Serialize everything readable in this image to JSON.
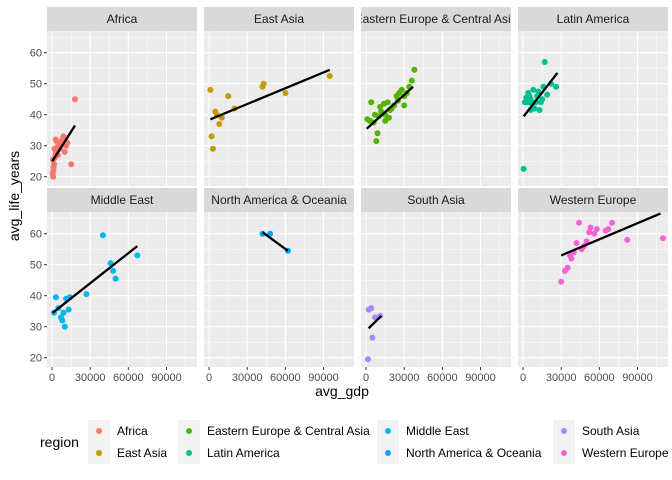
{
  "chart_data": {
    "type": "scatter",
    "facet_by": "region",
    "xlabel": "avg_gdp",
    "ylabel": "avg_life_years",
    "xlim": [
      -4000,
      114000
    ],
    "ylim": [
      17,
      67
    ],
    "xticks": [
      0,
      30000,
      60000,
      90000
    ],
    "xtick_labels": [
      "0",
      "30000",
      "60000",
      "90000"
    ],
    "yticks": [
      20,
      30,
      40,
      50,
      60
    ],
    "ytick_labels": [
      "20",
      "30",
      "40",
      "50",
      "60"
    ],
    "grid": true,
    "trend_lines": "linear fit per panel (black)",
    "legend": {
      "title": "region",
      "position": "bottom"
    },
    "series": [
      {
        "name": "Africa",
        "color": "#F8766D",
        "trend": [
          [
            200,
            25
          ],
          [
            18000,
            36.5
          ]
        ],
        "points": [
          [
            500,
            21
          ],
          [
            800,
            20
          ],
          [
            1000,
            22
          ],
          [
            1200,
            23
          ],
          [
            1500,
            24
          ],
          [
            700,
            25.5
          ],
          [
            2000,
            26
          ],
          [
            2500,
            27
          ],
          [
            3000,
            28
          ],
          [
            1800,
            29
          ],
          [
            4000,
            29.5
          ],
          [
            5000,
            30
          ],
          [
            6000,
            31
          ],
          [
            3500,
            31.5
          ],
          [
            8000,
            32
          ],
          [
            2800,
            32
          ],
          [
            9000,
            33
          ],
          [
            10000,
            28
          ],
          [
            4500,
            27
          ],
          [
            11000,
            30
          ],
          [
            15000,
            24
          ],
          [
            18000,
            45
          ],
          [
            12000,
            31
          ],
          [
            6500,
            29
          ]
        ]
      },
      {
        "name": "East Asia",
        "color": "#C49A00",
        "trend": [
          [
            1000,
            38.5
          ],
          [
            95000,
            54.5
          ]
        ],
        "points": [
          [
            1000,
            48
          ],
          [
            2000,
            33
          ],
          [
            3000,
            29
          ],
          [
            5000,
            41
          ],
          [
            6000,
            40
          ],
          [
            8000,
            37
          ],
          [
            10000,
            39
          ],
          [
            15000,
            46
          ],
          [
            20000,
            42
          ],
          [
            42000,
            49
          ],
          [
            43000,
            50
          ],
          [
            60000,
            47
          ],
          [
            95000,
            52.5
          ]
        ]
      },
      {
        "name": "Eastern Europe & Central Asia",
        "color": "#53B400",
        "trend": [
          [
            500,
            35.5
          ],
          [
            37000,
            49
          ]
        ],
        "points": [
          [
            1000,
            38.5
          ],
          [
            3000,
            38
          ],
          [
            4000,
            44
          ],
          [
            6000,
            37.5
          ],
          [
            7000,
            40
          ],
          [
            8000,
            31.5
          ],
          [
            9000,
            34
          ],
          [
            10000,
            39.5
          ],
          [
            11000,
            42.5
          ],
          [
            12000,
            41
          ],
          [
            14000,
            43.5
          ],
          [
            15000,
            40
          ],
          [
            17000,
            44
          ],
          [
            18000,
            39
          ],
          [
            19000,
            41.5
          ],
          [
            20000,
            42
          ],
          [
            22000,
            43
          ],
          [
            24000,
            46
          ],
          [
            25000,
            44.5
          ],
          [
            26000,
            47
          ],
          [
            28000,
            48
          ],
          [
            30000,
            46
          ],
          [
            32000,
            47
          ],
          [
            34000,
            49
          ],
          [
            36000,
            51
          ],
          [
            38000,
            54.5
          ],
          [
            30000,
            43
          ],
          [
            15000,
            38
          ]
        ]
      },
      {
        "name": "Latin America",
        "color": "#00C094",
        "trend": [
          [
            500,
            39.5
          ],
          [
            27000,
            53.5
          ]
        ],
        "points": [
          [
            500,
            22.5
          ],
          [
            1500,
            44
          ],
          [
            2500,
            45.5
          ],
          [
            3500,
            44
          ],
          [
            4000,
            47
          ],
          [
            5000,
            46
          ],
          [
            6000,
            45
          ],
          [
            7000,
            43.5
          ],
          [
            8000,
            48
          ],
          [
            9000,
            42
          ],
          [
            10000,
            44
          ],
          [
            11000,
            46
          ],
          [
            12000,
            47.5
          ],
          [
            13000,
            41.5
          ],
          [
            14000,
            44
          ],
          [
            15000,
            45
          ],
          [
            16000,
            49
          ],
          [
            17000,
            57
          ],
          [
            19000,
            46.5
          ],
          [
            22000,
            50
          ],
          [
            26000,
            49
          ],
          [
            6000,
            41.5
          ]
        ]
      },
      {
        "name": "Middle East",
        "color": "#00B6EB",
        "trend": [
          [
            500,
            34.5
          ],
          [
            67000,
            56
          ]
        ],
        "points": [
          [
            1500,
            34.5
          ],
          [
            3000,
            39.5
          ],
          [
            5000,
            36
          ],
          [
            7000,
            33
          ],
          [
            8000,
            32
          ],
          [
            9000,
            34.5
          ],
          [
            10000,
            30
          ],
          [
            11000,
            39
          ],
          [
            13000,
            35.5
          ],
          [
            14000,
            39.5
          ],
          [
            27000,
            40.5
          ],
          [
            40000,
            59.5
          ],
          [
            46000,
            50.5
          ],
          [
            48000,
            48
          ],
          [
            50000,
            45.5
          ],
          [
            67000,
            53
          ]
        ]
      },
      {
        "name": "North America & Oceania",
        "color": "#06A4FF",
        "trend": [
          [
            42000,
            60.5
          ],
          [
            62000,
            54.5
          ]
        ],
        "points": [
          [
            42000,
            60
          ],
          [
            48000,
            60
          ],
          [
            62000,
            54.5
          ]
        ]
      },
      {
        "name": "South Asia",
        "color": "#A58AFF",
        "trend": [
          [
            2000,
            29.5
          ],
          [
            12000,
            33.5
          ]
        ],
        "points": [
          [
            2000,
            35.5
          ],
          [
            4000,
            36
          ],
          [
            5000,
            26.5
          ],
          [
            7000,
            33
          ],
          [
            11000,
            33.5
          ],
          [
            1500,
            19.5
          ]
        ]
      },
      {
        "name": "Western Europe",
        "color": "#FB61D7",
        "trend": [
          [
            30000,
            53
          ],
          [
            108000,
            66.5
          ]
        ],
        "points": [
          [
            30000,
            44.5
          ],
          [
            33000,
            48
          ],
          [
            35000,
            49
          ],
          [
            37000,
            53
          ],
          [
            38000,
            52
          ],
          [
            40000,
            54
          ],
          [
            42000,
            57
          ],
          [
            44000,
            63.5
          ],
          [
            46000,
            55
          ],
          [
            48000,
            56
          ],
          [
            50000,
            57.5
          ],
          [
            52000,
            60.5
          ],
          [
            53000,
            62
          ],
          [
            56000,
            60
          ],
          [
            58000,
            61.5
          ],
          [
            65000,
            61
          ],
          [
            67000,
            61.5
          ],
          [
            70000,
            63.5
          ],
          [
            82000,
            58
          ],
          [
            110000,
            58.5
          ]
        ]
      }
    ]
  }
}
